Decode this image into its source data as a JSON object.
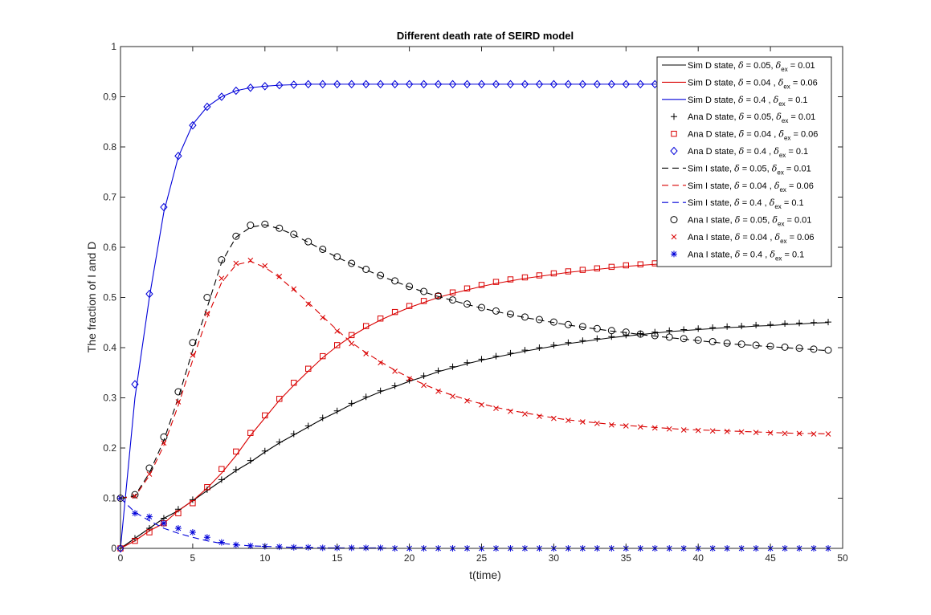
{
  "chart_data": {
    "type": "line",
    "title": "Different death rate of SEIRD model",
    "xlabel": "t(time)",
    "ylabel": "The fraction of I and D",
    "xlim": [
      0,
      50
    ],
    "ylim": [
      0,
      1
    ],
    "xticks": [
      "0",
      "5",
      "10",
      "15",
      "20",
      "25",
      "30",
      "35",
      "40",
      "45",
      "50"
    ],
    "yticks": [
      "0",
      "0.1",
      "0.2",
      "0.3",
      "0.4",
      "0.5",
      "0.6",
      "0.7",
      "0.8",
      "0.9",
      "1"
    ],
    "grid": false,
    "legend_position": "top-right",
    "colors": {
      "black": "#000000",
      "red": "#d90000",
      "blue": "#0000d9"
    },
    "x": [
      0,
      1,
      2,
      3,
      4,
      5,
      6,
      7,
      8,
      9,
      10,
      11,
      12,
      13,
      14,
      15,
      16,
      17,
      18,
      19,
      20,
      21,
      22,
      23,
      24,
      25,
      26,
      27,
      28,
      29,
      30,
      31,
      32,
      33,
      34,
      35,
      36,
      37,
      38,
      39,
      40,
      41,
      42,
      43,
      44,
      45,
      46,
      47,
      48,
      49
    ],
    "series": [
      {
        "legend": {
          "prefix": "Sim D state, ",
          "delta": "δ",
          "eq1": " = 0.05, ",
          "delta2": "δ",
          "sub": "ex",
          "eq2": " = 0.01"
        },
        "color": "#000000",
        "line": "solid",
        "marker": "none",
        "values": [
          0,
          0.02,
          0.04,
          0.06,
          0.075,
          0.095,
          0.115,
          0.135,
          0.155,
          0.172,
          0.192,
          0.21,
          0.226,
          0.242,
          0.258,
          0.272,
          0.287,
          0.3,
          0.312,
          0.322,
          0.333,
          0.342,
          0.352,
          0.36,
          0.368,
          0.375,
          0.381,
          0.387,
          0.393,
          0.398,
          0.403,
          0.408,
          0.412,
          0.416,
          0.42,
          0.423,
          0.426,
          0.429,
          0.432,
          0.434,
          0.436,
          0.438,
          0.44,
          0.441,
          0.443,
          0.444,
          0.446,
          0.447,
          0.449,
          0.45
        ]
      },
      {
        "legend": {
          "prefix": "Sim D state, ",
          "delta": "δ",
          "eq1": " = 0.04 , ",
          "delta2": "δ",
          "sub": "ex",
          "eq2": " = 0.06"
        },
        "color": "#d90000",
        "line": "solid",
        "marker": "none",
        "values": [
          0,
          0.015,
          0.035,
          0.05,
          0.075,
          0.095,
          0.12,
          0.15,
          0.185,
          0.225,
          0.26,
          0.295,
          0.325,
          0.353,
          0.38,
          0.403,
          0.423,
          0.44,
          0.455,
          0.468,
          0.48,
          0.49,
          0.5,
          0.508,
          0.515,
          0.522,
          0.528,
          0.533,
          0.538,
          0.542,
          0.546,
          0.55,
          0.553,
          0.556,
          0.559,
          0.562,
          0.564,
          0.566,
          0.568,
          0.57,
          0.572,
          0.574,
          0.576,
          0.577,
          0.578,
          0.579,
          0.58,
          0.581,
          0.582,
          0.583
        ]
      },
      {
        "legend": {
          "prefix": "Sim D state, ",
          "delta": "δ",
          "eq1": " = 0.4 , ",
          "delta2": "δ",
          "sub": "ex",
          "eq2": " = 0.1"
        },
        "color": "#0000d9",
        "line": "solid",
        "marker": "none",
        "values": [
          0,
          0.3,
          0.5,
          0.67,
          0.78,
          0.845,
          0.88,
          0.9,
          0.912,
          0.918,
          0.921,
          0.923,
          0.924,
          0.925,
          0.925,
          0.925,
          0.925,
          0.925,
          0.925,
          0.925,
          0.925,
          0.925,
          0.925,
          0.925,
          0.925,
          0.925,
          0.925,
          0.925,
          0.925,
          0.925,
          0.925,
          0.925,
          0.925,
          0.925,
          0.925,
          0.925,
          0.925,
          0.925,
          0.925,
          0.925,
          0.925,
          0.925,
          0.925,
          0.925,
          0.925,
          0.925,
          0.925,
          0.925,
          0.925,
          0.925
        ]
      },
      {
        "legend": {
          "prefix": "Ana D state, ",
          "delta": "δ",
          "eq1": " = 0.05, ",
          "delta2": "δ",
          "sub": "ex",
          "eq2": " = 0.01"
        },
        "color": "#000000",
        "line": "none",
        "marker": "plus",
        "values": [
          0,
          0.02,
          0.04,
          0.06,
          0.078,
          0.097,
          0.117,
          0.137,
          0.157,
          0.175,
          0.194,
          0.212,
          0.228,
          0.244,
          0.26,
          0.274,
          0.289,
          0.302,
          0.314,
          0.324,
          0.335,
          0.344,
          0.354,
          0.362,
          0.37,
          0.377,
          0.383,
          0.389,
          0.395,
          0.4,
          0.405,
          0.41,
          0.414,
          0.418,
          0.422,
          0.425,
          0.428,
          0.431,
          0.434,
          0.436,
          0.438,
          0.44,
          0.442,
          0.443,
          0.445,
          0.446,
          0.448,
          0.449,
          0.45,
          0.451
        ]
      },
      {
        "legend": {
          "prefix": "Ana D state, ",
          "delta": "δ",
          "eq1": " = 0.04 , ",
          "delta2": "δ",
          "sub": "ex",
          "eq2": " = 0.06"
        },
        "color": "#d90000",
        "line": "none",
        "marker": "square",
        "values": [
          0,
          0.015,
          0.032,
          0.05,
          0.07,
          0.09,
          0.122,
          0.158,
          0.193,
          0.23,
          0.265,
          0.298,
          0.33,
          0.358,
          0.383,
          0.405,
          0.425,
          0.443,
          0.458,
          0.471,
          0.483,
          0.493,
          0.503,
          0.51,
          0.518,
          0.525,
          0.531,
          0.536,
          0.54,
          0.544,
          0.548,
          0.552,
          0.555,
          0.558,
          0.561,
          0.564,
          0.566,
          0.568,
          0.57,
          0.572,
          0.574,
          0.576,
          0.578,
          0.579,
          0.58,
          0.581,
          0.582,
          0.583,
          0.584,
          0.585
        ]
      },
      {
        "legend": {
          "prefix": "Ana D state, ",
          "delta": "δ",
          "eq1": " = 0.4 , ",
          "delta2": "δ",
          "sub": "ex",
          "eq2": " = 0.1"
        },
        "color": "#0000d9",
        "line": "none",
        "marker": "diamond",
        "values": [
          0,
          0.327,
          0.507,
          0.68,
          0.782,
          0.843,
          0.88,
          0.9,
          0.912,
          0.918,
          0.921,
          0.923,
          0.924,
          0.925,
          0.925,
          0.925,
          0.925,
          0.925,
          0.925,
          0.925,
          0.925,
          0.925,
          0.925,
          0.925,
          0.925,
          0.925,
          0.925,
          0.925,
          0.925,
          0.925,
          0.925,
          0.925,
          0.925,
          0.925,
          0.925,
          0.925,
          0.925,
          0.925,
          0.925,
          0.925,
          0.925,
          0.925,
          0.925,
          0.925,
          0.925,
          0.925,
          0.925,
          0.925,
          0.925,
          0.925
        ]
      },
      {
        "legend": {
          "prefix": "Sim I state, ",
          "delta": "δ",
          "eq1": " = 0.05, ",
          "delta2": "δ",
          "sub": "ex",
          "eq2": " = 0.01"
        },
        "color": "#000000",
        "line": "dashed",
        "marker": "none",
        "values": [
          0.1,
          0.105,
          0.15,
          0.215,
          0.3,
          0.395,
          0.48,
          0.57,
          0.62,
          0.64,
          0.645,
          0.637,
          0.625,
          0.61,
          0.595,
          0.58,
          0.567,
          0.555,
          0.543,
          0.532,
          0.521,
          0.511,
          0.502,
          0.494,
          0.486,
          0.479,
          0.472,
          0.466,
          0.46,
          0.455,
          0.45,
          0.445,
          0.441,
          0.437,
          0.433,
          0.43,
          0.426,
          0.423,
          0.42,
          0.417,
          0.414,
          0.411,
          0.408,
          0.406,
          0.404,
          0.402,
          0.4,
          0.398,
          0.396,
          0.394
        ]
      },
      {
        "legend": {
          "prefix": "Sim I state, ",
          "delta": "δ",
          "eq1": " = 0.04 , ",
          "delta2": "δ",
          "sub": "ex",
          "eq2": " = 0.06"
        },
        "color": "#d90000",
        "line": "dashed",
        "marker": "none",
        "values": [
          0.1,
          0.103,
          0.145,
          0.205,
          0.285,
          0.375,
          0.46,
          0.53,
          0.565,
          0.572,
          0.56,
          0.54,
          0.515,
          0.49,
          0.462,
          0.435,
          0.41,
          0.39,
          0.372,
          0.355,
          0.34,
          0.327,
          0.315,
          0.305,
          0.296,
          0.288,
          0.281,
          0.275,
          0.27,
          0.265,
          0.26,
          0.256,
          0.253,
          0.25,
          0.247,
          0.245,
          0.243,
          0.241,
          0.239,
          0.237,
          0.236,
          0.235,
          0.234,
          0.233,
          0.232,
          0.231,
          0.23,
          0.229,
          0.229,
          0.228
        ]
      },
      {
        "legend": {
          "prefix": "Sim I state, ",
          "delta": "δ",
          "eq1": " = 0.4 , ",
          "delta2": "δ",
          "sub": "ex",
          "eq2": " = 0.1"
        },
        "color": "#0000d9",
        "line": "dashed",
        "marker": "none",
        "values": [
          0.1,
          0.072,
          0.055,
          0.04,
          0.03,
          0.022,
          0.015,
          0.01,
          0.007,
          0.005,
          0.004,
          0.003,
          0.002,
          0.002,
          0.001,
          0.001,
          0.001,
          0.001,
          0.001,
          0,
          0,
          0,
          0,
          0,
          0,
          0,
          0,
          0,
          0,
          0,
          0,
          0,
          0,
          0,
          0,
          0,
          0,
          0,
          0,
          0,
          0,
          0,
          0,
          0,
          0,
          0,
          0,
          0,
          0,
          0
        ]
      },
      {
        "legend": {
          "prefix": "Ana I state, ",
          "delta": "δ",
          "eq1": " = 0.05, ",
          "delta2": "δ",
          "sub": "ex",
          "eq2": " = 0.01"
        },
        "color": "#000000",
        "line": "none",
        "marker": "circle",
        "values": [
          0.1,
          0.107,
          0.16,
          0.222,
          0.312,
          0.41,
          0.5,
          0.575,
          0.622,
          0.644,
          0.646,
          0.638,
          0.626,
          0.611,
          0.596,
          0.581,
          0.568,
          0.556,
          0.544,
          0.533,
          0.522,
          0.512,
          0.503,
          0.495,
          0.487,
          0.48,
          0.473,
          0.467,
          0.461,
          0.456,
          0.451,
          0.446,
          0.442,
          0.438,
          0.434,
          0.431,
          0.427,
          0.424,
          0.421,
          0.418,
          0.415,
          0.412,
          0.409,
          0.407,
          0.405,
          0.403,
          0.401,
          0.399,
          0.397,
          0.395
        ]
      },
      {
        "legend": {
          "prefix": "Ana I state, ",
          "delta": "δ",
          "eq1": " = 0.04 , ",
          "delta2": "δ",
          "sub": "ex",
          "eq2": " = 0.06"
        },
        "color": "#d90000",
        "line": "none",
        "marker": "x",
        "values": [
          0.1,
          0.104,
          0.148,
          0.21,
          0.292,
          0.385,
          0.468,
          0.538,
          0.568,
          0.574,
          0.563,
          0.542,
          0.517,
          0.487,
          0.46,
          0.433,
          0.408,
          0.388,
          0.37,
          0.353,
          0.338,
          0.325,
          0.313,
          0.303,
          0.294,
          0.286,
          0.279,
          0.273,
          0.268,
          0.263,
          0.259,
          0.255,
          0.252,
          0.249,
          0.246,
          0.244,
          0.242,
          0.24,
          0.238,
          0.236,
          0.235,
          0.234,
          0.233,
          0.232,
          0.231,
          0.23,
          0.229,
          0.229,
          0.228,
          0.228
        ]
      },
      {
        "legend": {
          "prefix": "Ana I state, ",
          "delta": "δ",
          "eq1": " = 0.4 , ",
          "delta2": "δ",
          "sub": "ex",
          "eq2": " = 0.1"
        },
        "color": "#0000d9",
        "line": "none",
        "marker": "asterisk",
        "values": [
          0.1,
          0.07,
          0.063,
          0.05,
          0.04,
          0.032,
          0.022,
          0.012,
          0.007,
          0.005,
          0.004,
          0.003,
          0.002,
          0.002,
          0.001,
          0.001,
          0.001,
          0.001,
          0.001,
          0,
          0,
          0,
          0,
          0,
          0,
          0,
          0,
          0,
          0,
          0,
          0,
          0,
          0,
          0,
          0,
          0,
          0,
          0,
          0,
          0,
          0,
          0,
          0,
          0,
          0,
          0,
          0,
          0,
          0,
          0
        ]
      }
    ]
  }
}
